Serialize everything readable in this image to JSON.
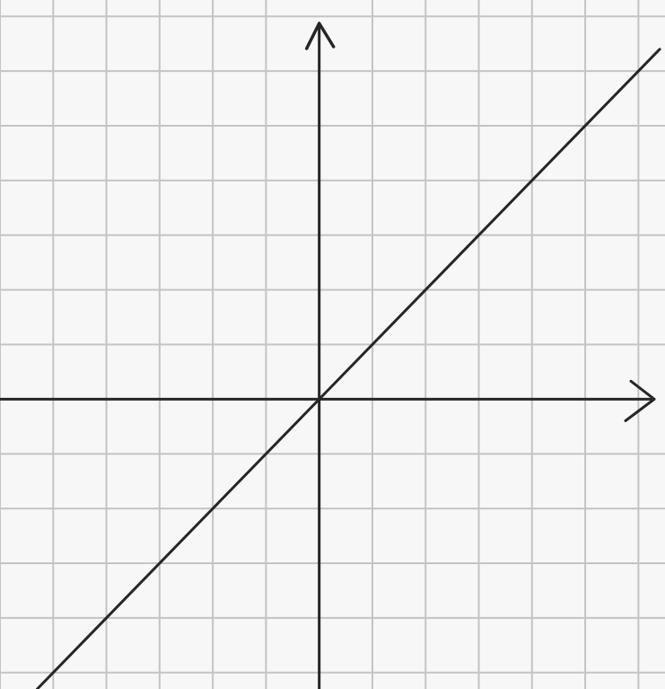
{
  "chart_data": {
    "type": "line",
    "title": "",
    "xlabel": "",
    "ylabel": "",
    "grid": true,
    "xlim": [
      -6,
      6.5
    ],
    "ylim": [
      -5.3,
      7.3
    ],
    "series": [
      {
        "x": [
          -5.3,
          6.4
        ],
        "y": [
          -5.3,
          6.4
        ]
      }
    ],
    "colors": {
      "paper": "#f7f7f7",
      "grid": "#c4c4c4",
      "ink": "#262626"
    }
  }
}
